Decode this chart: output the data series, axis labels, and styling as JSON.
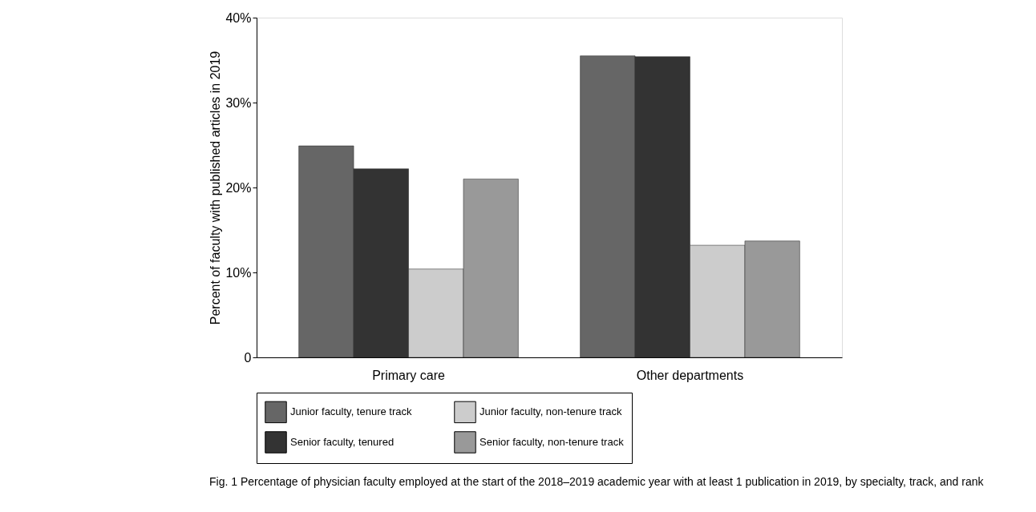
{
  "chart_data": {
    "type": "bar",
    "ylabel": "Percent of faculty with published articles in 2019",
    "categories": [
      "Primary care",
      "Other departments"
    ],
    "series": [
      {
        "name": "Junior faculty, tenure track",
        "color": "#666666",
        "values": [
          24.9,
          35.5
        ]
      },
      {
        "name": "Senior faculty, tenured",
        "color": "#333333",
        "values": [
          22.2,
          35.4
        ]
      },
      {
        "name": "Junior faculty, non-tenure track",
        "color": "#cccccc",
        "values": [
          10.4,
          13.2
        ]
      },
      {
        "name": "Senior faculty, non-tenure track",
        "color": "#999999",
        "values": [
          21.0,
          13.7
        ]
      }
    ],
    "ylim": [
      0,
      40
    ],
    "yticks": [
      {
        "value": 0,
        "label": "0"
      },
      {
        "value": 10,
        "label": "10%"
      },
      {
        "value": 20,
        "label": "20%"
      },
      {
        "value": 30,
        "label": "30%"
      },
      {
        "value": 40,
        "label": "40%"
      }
    ],
    "grid": false,
    "legend": "bottom",
    "annotations": [
      "Fig. 1 Percentage of physician faculty employed at the start of the 2018–2019 academic year with at least 1 publication in 2019, by specialty, track, and rank"
    ]
  }
}
